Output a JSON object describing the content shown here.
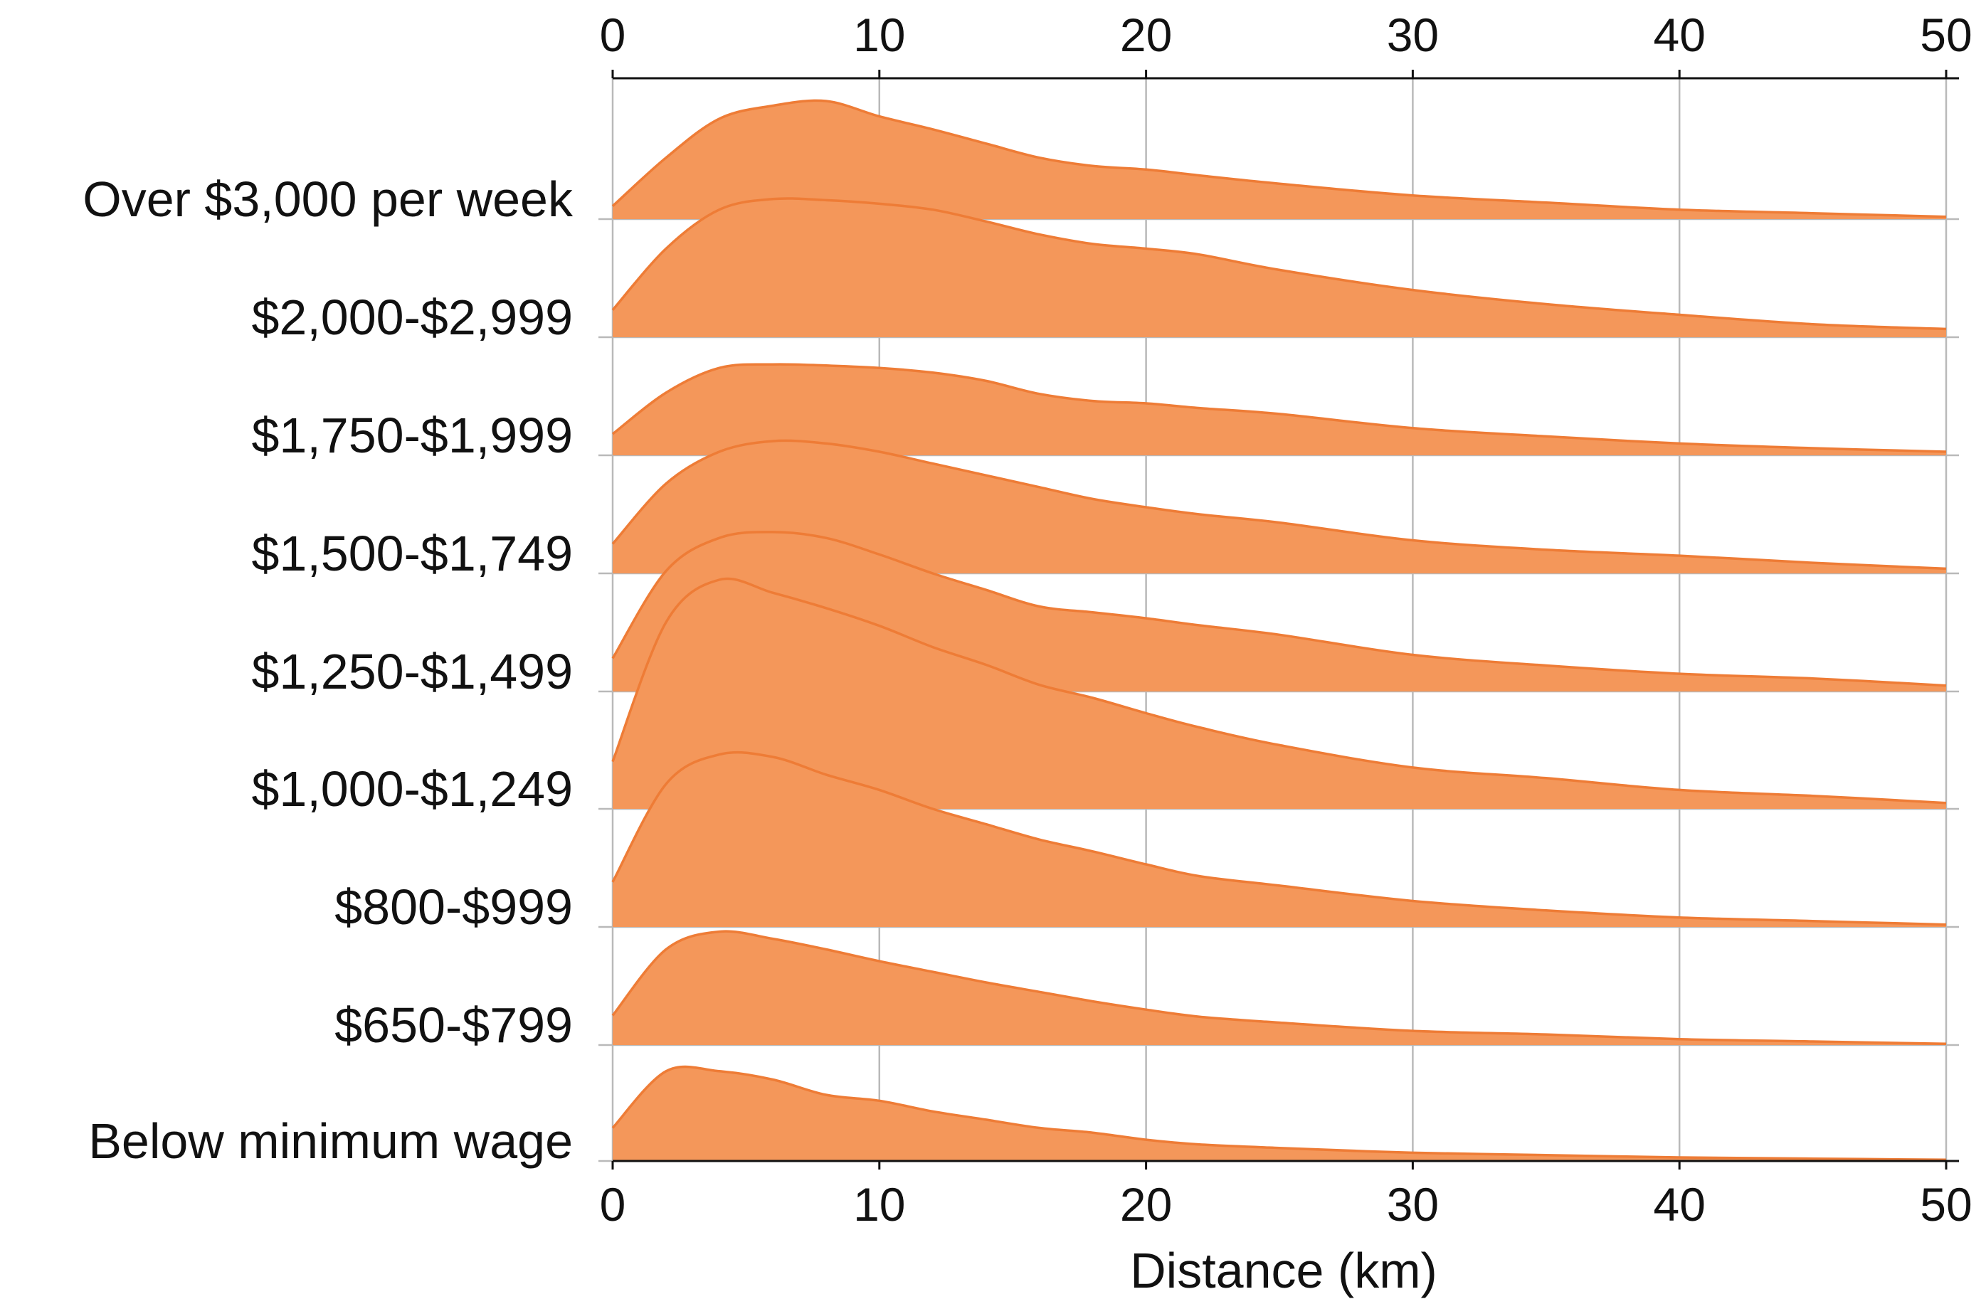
{
  "chart_data": {
    "type": "area",
    "subtype": "ridgeline",
    "xlabel": "Distance (km)",
    "xlim": [
      0,
      50
    ],
    "xticks": [
      "0",
      "10",
      "20",
      "30",
      "40",
      "50"
    ],
    "grid": "vertical",
    "fill_color": "#F4975A",
    "line_color": "#EE7C36",
    "x": [
      0,
      2,
      4,
      6,
      8,
      10,
      12,
      14,
      16,
      18,
      20,
      22,
      25,
      30,
      35,
      40,
      45,
      50
    ],
    "series": [
      {
        "name": "Over $3,000 per week",
        "values": [
          0.11,
          0.52,
          0.85,
          0.96,
          1.0,
          0.87,
          0.76,
          0.64,
          0.52,
          0.45,
          0.42,
          0.37,
          0.3,
          0.2,
          0.14,
          0.08,
          0.05,
          0.02
        ]
      },
      {
        "name": "$2,000-$2,999",
        "values": [
          0.23,
          0.75,
          1.08,
          1.17,
          1.16,
          1.13,
          1.08,
          0.98,
          0.87,
          0.79,
          0.75,
          0.7,
          0.57,
          0.4,
          0.28,
          0.19,
          0.11,
          0.07
        ]
      },
      {
        "name": "$1,750-$1,999",
        "values": [
          0.18,
          0.53,
          0.74,
          0.77,
          0.76,
          0.74,
          0.7,
          0.63,
          0.52,
          0.46,
          0.44,
          0.4,
          0.35,
          0.23,
          0.16,
          0.1,
          0.06,
          0.03
        ]
      },
      {
        "name": "$1,500-$1,749",
        "values": [
          0.25,
          0.76,
          1.03,
          1.12,
          1.1,
          1.03,
          0.93,
          0.83,
          0.73,
          0.63,
          0.56,
          0.5,
          0.43,
          0.28,
          0.2,
          0.15,
          0.09,
          0.04
        ]
      },
      {
        "name": "$1,250-$1,499",
        "values": [
          0.28,
          1.02,
          1.3,
          1.35,
          1.3,
          1.16,
          1.0,
          0.86,
          0.72,
          0.67,
          0.62,
          0.56,
          0.48,
          0.31,
          0.22,
          0.15,
          0.11,
          0.05
        ]
      },
      {
        "name": "$1,000-$1,249",
        "values": [
          0.4,
          1.58,
          1.94,
          1.83,
          1.7,
          1.55,
          1.37,
          1.22,
          1.05,
          0.94,
          0.81,
          0.69,
          0.54,
          0.35,
          0.26,
          0.16,
          0.11,
          0.05
        ]
      },
      {
        "name": "$800-$999",
        "values": [
          0.38,
          1.21,
          1.46,
          1.44,
          1.29,
          1.16,
          1.0,
          0.87,
          0.74,
          0.64,
          0.53,
          0.43,
          0.35,
          0.22,
          0.14,
          0.08,
          0.05,
          0.02
        ]
      },
      {
        "name": "$650-$799",
        "values": [
          0.25,
          0.81,
          0.96,
          0.9,
          0.81,
          0.71,
          0.62,
          0.53,
          0.45,
          0.37,
          0.3,
          0.24,
          0.19,
          0.12,
          0.09,
          0.05,
          0.03,
          0.01
        ]
      },
      {
        "name": "Below minimum wage",
        "values": [
          0.28,
          0.76,
          0.76,
          0.69,
          0.56,
          0.51,
          0.42,
          0.35,
          0.28,
          0.24,
          0.18,
          0.14,
          0.11,
          0.07,
          0.05,
          0.03,
          0.02,
          0.01
        ]
      }
    ]
  }
}
